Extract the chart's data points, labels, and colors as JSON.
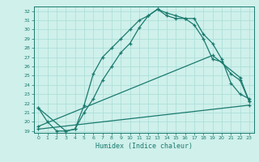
{
  "xlabel": "Humidex (Indice chaleur)",
  "bg_color": "#cff0eb",
  "line_color": "#1a7a6e",
  "grid_color": "#a8ddd6",
  "xlim": [
    -0.5,
    23.5
  ],
  "ylim": [
    18.8,
    32.5
  ],
  "yticks": [
    19,
    20,
    21,
    22,
    23,
    24,
    25,
    26,
    27,
    28,
    29,
    30,
    31,
    32
  ],
  "xticks": [
    0,
    1,
    2,
    3,
    4,
    5,
    6,
    7,
    8,
    9,
    10,
    11,
    12,
    13,
    14,
    15,
    16,
    17,
    18,
    19,
    20,
    21,
    22,
    23
  ],
  "line1_x": [
    0,
    1,
    2,
    3,
    4,
    5,
    6,
    7,
    8,
    9,
    10,
    11,
    12,
    13,
    14,
    15,
    16,
    17,
    18,
    19,
    20,
    21,
    22,
    23
  ],
  "line1_y": [
    21.5,
    20.0,
    19.0,
    19.0,
    19.2,
    21.8,
    25.2,
    27.0,
    28.0,
    29.0,
    30.0,
    31.0,
    31.5,
    32.2,
    31.5,
    31.2,
    31.2,
    31.2,
    29.5,
    28.5,
    26.8,
    24.2,
    23.0,
    22.5
  ],
  "line2_x": [
    0,
    3,
    4,
    5,
    6,
    7,
    8,
    9,
    10,
    11,
    12,
    13,
    14,
    15,
    16,
    17,
    18,
    19,
    20,
    21,
    22,
    23
  ],
  "line2_y": [
    21.5,
    19.0,
    19.2,
    21.0,
    22.5,
    24.5,
    26.0,
    27.5,
    28.5,
    30.2,
    31.5,
    32.2,
    31.8,
    31.5,
    31.2,
    30.5,
    29.0,
    26.8,
    26.5,
    25.2,
    24.5,
    22.2
  ],
  "line3_x": [
    0,
    23
  ],
  "line3_y": [
    19.2,
    21.8
  ],
  "line4_x": [
    0,
    19,
    22,
    23
  ],
  "line4_y": [
    19.5,
    27.2,
    24.8,
    22.2
  ]
}
